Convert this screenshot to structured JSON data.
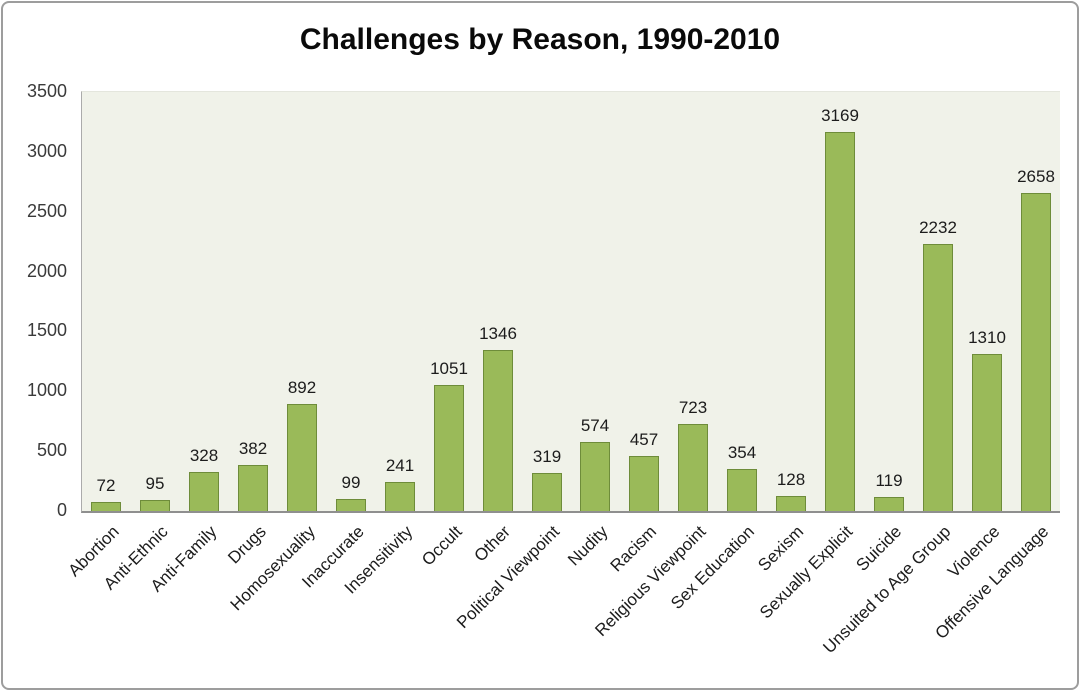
{
  "chart_data": {
    "type": "bar",
    "title": "Challenges by Reason, 1990-2010",
    "categories": [
      "Abortion",
      "Anti-Ethnic",
      "Anti-Family",
      "Drugs",
      "Homosexuality",
      "Inaccurate",
      "Insensitivity",
      "Occult",
      "Other",
      "Political Viewpoint",
      "Nudity",
      "Racism",
      "Religious Viewpoint",
      "Sex Education",
      "Sexism",
      "Sexually Explicit",
      "Suicide",
      "Unsuited to Age Group",
      "Violence",
      "Offensive Language"
    ],
    "values": [
      72,
      95,
      328,
      382,
      892,
      99,
      241,
      1051,
      1346,
      319,
      574,
      457,
      723,
      354,
      128,
      3169,
      119,
      2232,
      1310,
      2658
    ],
    "data_labels": true,
    "xlabel": "",
    "ylabel": "",
    "ylim": [
      0,
      3500
    ],
    "yticks": [
      0,
      500,
      1000,
      1500,
      2000,
      2500,
      3000,
      3500
    ],
    "grid": false,
    "legend": false,
    "colors": {
      "bar_fill": "#9aba59",
      "bar_border": "#6e8c3a",
      "plot_background": "#f0f2e9",
      "axis_line": "#8f8f8f",
      "text": "#1c1c1c",
      "frame_border": "#9d9d9d"
    }
  }
}
